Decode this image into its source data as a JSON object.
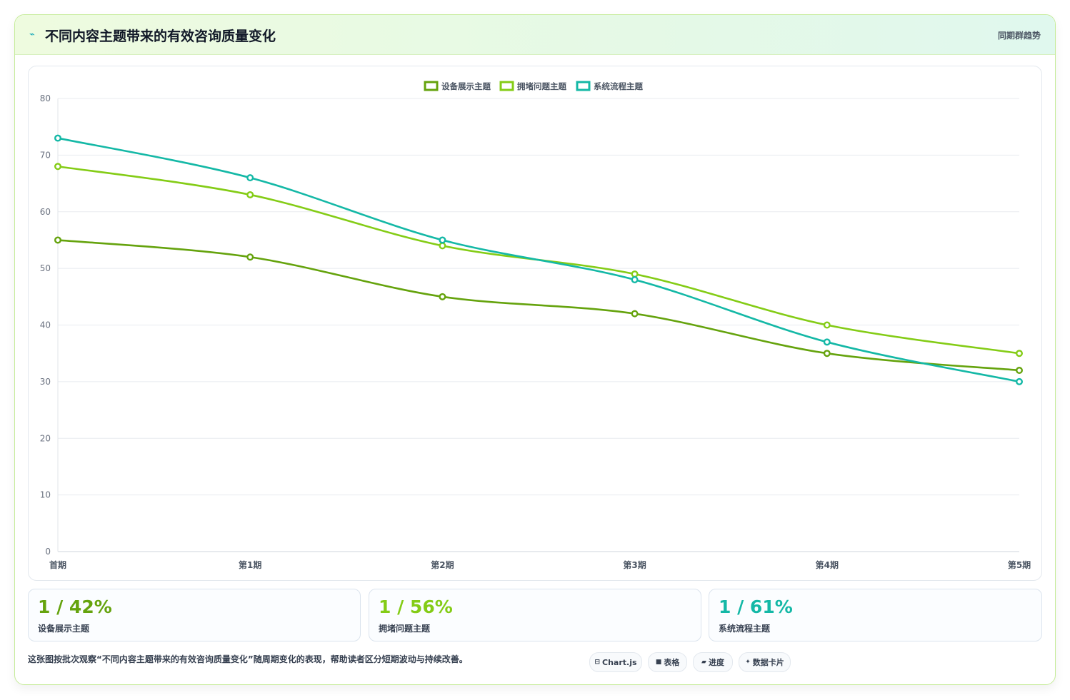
{
  "header": {
    "title_icon": "chart-line-icon",
    "title": "不同内容主题带来的有效咨询质量变化",
    "tag": "同期群趋势"
  },
  "chart_data": {
    "type": "line",
    "title": "",
    "xlabel": "",
    "ylabel": "",
    "categories": [
      "首期",
      "第1期",
      "第2期",
      "第3期",
      "第4期",
      "第5期"
    ],
    "ylim": [
      0,
      80
    ],
    "yticks": [
      0,
      10,
      20,
      30,
      40,
      50,
      60,
      70,
      80
    ],
    "grid": true,
    "legend_position": "top-center",
    "series": [
      {
        "name": "设备展示主题",
        "color": "#65a30d",
        "values": [
          55,
          52,
          45,
          42,
          35,
          32
        ]
      },
      {
        "name": "拥堵问题主题",
        "color": "#84cc16",
        "values": [
          68,
          63,
          54,
          49,
          40,
          35
        ]
      },
      {
        "name": "系统流程主题",
        "color": "#14b8a6",
        "values": [
          73,
          66,
          55,
          48,
          37,
          30
        ]
      }
    ]
  },
  "stats": [
    {
      "value": "1 / 42%",
      "label": "设备展示主题",
      "color": "#65a30d"
    },
    {
      "value": "1 / 56%",
      "label": "拥堵问题主题",
      "color": "#84cc16"
    },
    {
      "value": "1 / 61%",
      "label": "系统流程主题",
      "color": "#14b8a6"
    }
  ],
  "footer": {
    "note": "这张图按批次观察“不同内容主题带来的有效咨询质量变化”随周期变化的表现，帮助读者区分短期波动与持续改善。",
    "chips": [
      {
        "icon": "chart-icon",
        "glyph": "⊟",
        "label": "Chart.js"
      },
      {
        "icon": "table-icon",
        "glyph": "■",
        "label": "表格"
      },
      {
        "icon": "progress-icon",
        "glyph": "▰",
        "label": "进度"
      },
      {
        "icon": "sparkle-icon",
        "glyph": "✦",
        "label": "数据卡片"
      }
    ]
  }
}
